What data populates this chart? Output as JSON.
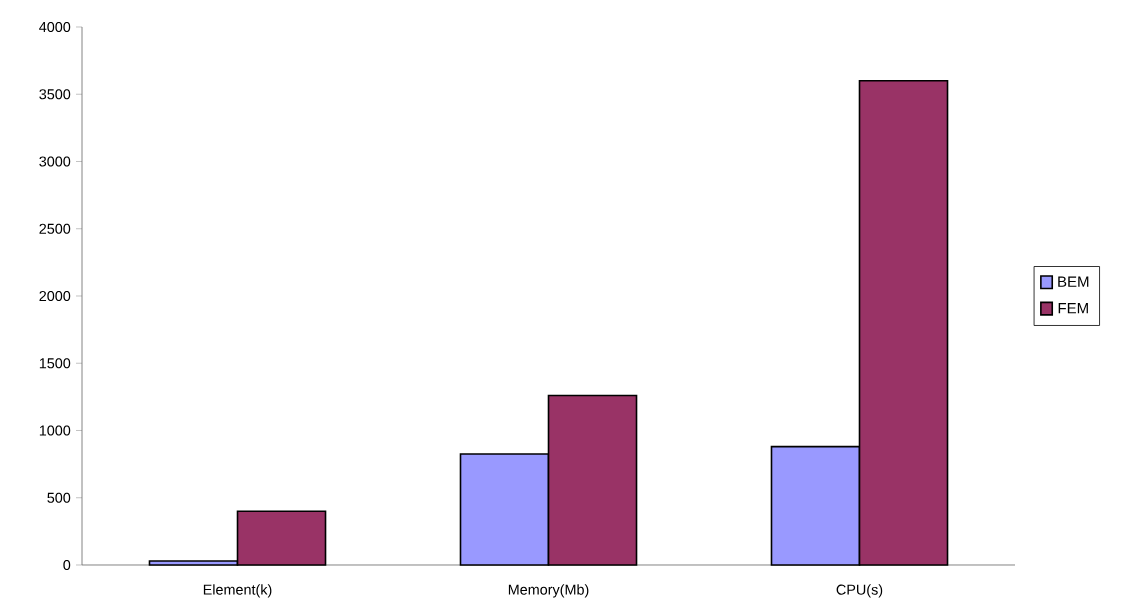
{
  "chart_data": {
    "type": "bar",
    "categories": [
      "Element(k)",
      "Memory(Mb)",
      "CPU(s)"
    ],
    "series": [
      {
        "name": "BEM",
        "color": "#9999ff",
        "values": [
          30,
          825,
          880
        ]
      },
      {
        "name": "FEM",
        "color": "#993366",
        "values": [
          400,
          1260,
          3600
        ]
      }
    ],
    "ylim": [
      0,
      4000
    ],
    "yticks": [
      0,
      500,
      1000,
      1500,
      2000,
      2500,
      3000,
      3500,
      4000
    ],
    "grid": false,
    "legend": "right"
  }
}
